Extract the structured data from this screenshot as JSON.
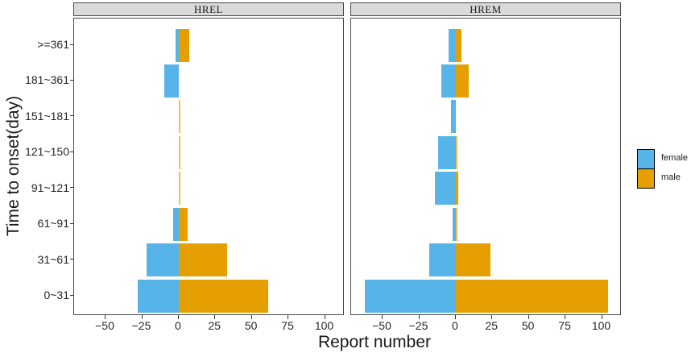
{
  "colors": {
    "female": "#56B4E9",
    "male": "#E69F00",
    "strip_background": "#DADADA",
    "panel_border": "#4A4A4A",
    "text": "#262626"
  },
  "chart_data": {
    "type": "bar",
    "variant": "horizontal-diverging-population-pyramid, 2 facets",
    "title": "",
    "xlabel": "Report number",
    "ylabel": "Time to onset(day)",
    "x_axis": {
      "tick_values": [
        -50,
        -25,
        0,
        25,
        50,
        75,
        100
      ],
      "tick_labels": [
        "−50",
        "−25",
        "0",
        "25",
        "50",
        "75",
        "100"
      ],
      "range": [
        -71.5,
        113.5
      ],
      "grid": "off"
    },
    "y_axis": {
      "categories_top_to_bottom": [
        ">=361",
        "181~361",
        "151~181",
        "121~150",
        "91~121",
        "61~91",
        "31~61",
        "0~31"
      ]
    },
    "series_note": "female counts are drawn to the left of zero, male counts to the right; values listed top-to-bottom matching categories_top_to_bottom",
    "facets": [
      {
        "label": "HREL",
        "series": [
          {
            "name": "female",
            "values": [
              2,
              10,
              0,
              0,
              0,
              4,
              22,
              28
            ]
          },
          {
            "name": "male",
            "values": [
              7,
              0,
              1,
              1,
              1,
              6,
              33,
              61
            ]
          }
        ]
      },
      {
        "label": "HREM",
        "series": [
          {
            "name": "female",
            "values": [
              5,
              10,
              3,
              12,
              14,
              2,
              18,
              62
            ]
          },
          {
            "name": "male",
            "values": [
              4,
              9,
              0,
              1,
              2,
              1,
              24,
              104
            ]
          }
        ]
      }
    ],
    "legend": {
      "position": "right",
      "items": [
        {
          "label": "female",
          "color": "#56B4E9"
        },
        {
          "label": "male",
          "color": "#E69F00"
        }
      ]
    }
  }
}
